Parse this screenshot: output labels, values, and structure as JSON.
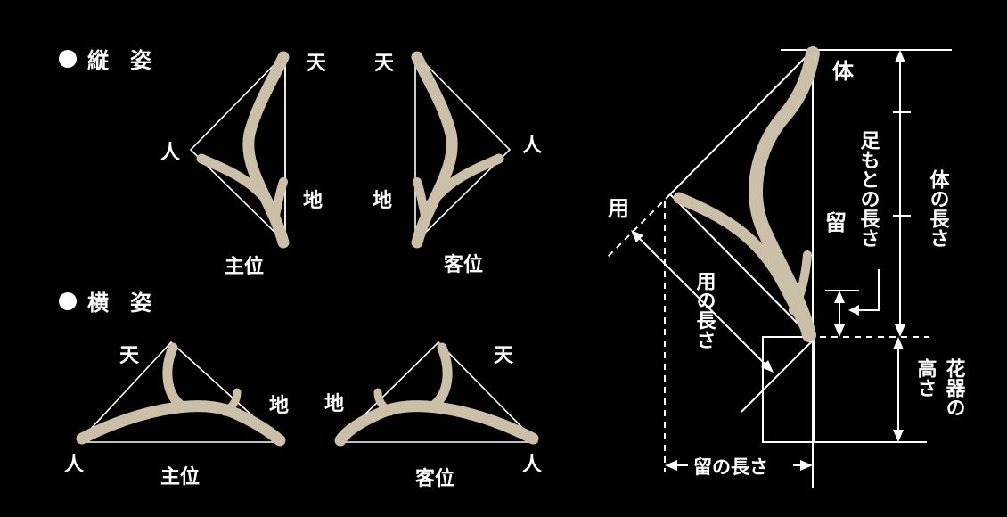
{
  "colors": {
    "background": "#000000",
    "line": "#ffffff",
    "branch": "#cbbfa8",
    "text": "#ffffff"
  },
  "sections": {
    "vertical": {
      "bullet": "●",
      "title": "縦　姿"
    },
    "horizontal": {
      "bullet": "●",
      "title": "横　姿"
    }
  },
  "labels": {
    "ten": "天",
    "hito": "人",
    "chi": "地",
    "shui": "主位",
    "kyakui": "客位"
  },
  "right_diagram": {
    "tai": "体",
    "you": "用",
    "tome": "留",
    "tai_length": "体の長さ",
    "ashimoto_length": "足もとの長さ",
    "you_length": "用の長さ",
    "kaki_height_a": "花器の",
    "kaki_height_b": "高さ",
    "tome_length": "留の長さ"
  }
}
